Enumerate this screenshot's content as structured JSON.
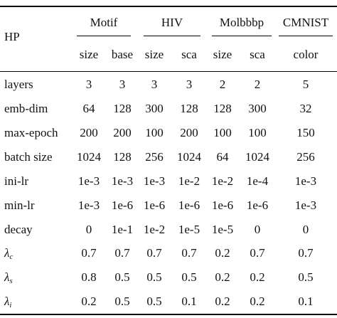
{
  "table": {
    "hp_header": "HP",
    "groups": [
      {
        "name": "Motif",
        "columns": [
          "size",
          "base"
        ]
      },
      {
        "name": "HIV",
        "columns": [
          "size",
          "sca"
        ]
      },
      {
        "name": "Molbbbp",
        "columns": [
          "size",
          "sca"
        ]
      },
      {
        "name": "CMNIST",
        "columns": [
          "color"
        ]
      }
    ],
    "rows": [
      {
        "label": "layers",
        "values": [
          "3",
          "3",
          "3",
          "3",
          "2",
          "2",
          "5"
        ]
      },
      {
        "label": "emb-dim",
        "values": [
          "64",
          "128",
          "300",
          "128",
          "128",
          "300",
          "32"
        ]
      },
      {
        "label": "max-epoch",
        "values": [
          "200",
          "200",
          "100",
          "200",
          "100",
          "100",
          "150"
        ]
      },
      {
        "label": "batch size",
        "values": [
          "1024",
          "128",
          "256",
          "1024",
          "64",
          "1024",
          "256"
        ]
      },
      {
        "label": "ini-lr",
        "values": [
          "1e-3",
          "1e-3",
          "1e-3",
          "1e-2",
          "1e-2",
          "1e-4",
          "1e-3"
        ]
      },
      {
        "label": "min-lr",
        "values": [
          "1e-3",
          "1e-6",
          "1e-6",
          "1e-6",
          "1e-6",
          "1e-6",
          "1e-3"
        ]
      },
      {
        "label": "decay",
        "values": [
          "0",
          "1e-1",
          "1e-2",
          "1e-5",
          "1e-5",
          "0",
          "0"
        ]
      },
      {
        "label_symbol": "λ",
        "label_sub": "c",
        "values": [
          "0.7",
          "0.7",
          "0.7",
          "0.7",
          "0.2",
          "0.7",
          "0.7"
        ]
      },
      {
        "label_symbol": "λ",
        "label_sub": "s",
        "values": [
          "0.8",
          "0.5",
          "0.5",
          "0.5",
          "0.2",
          "0.2",
          "0.5"
        ]
      },
      {
        "label_symbol": "λ",
        "label_sub": "i",
        "values": [
          "0.2",
          "0.5",
          "0.5",
          "0.1",
          "0.2",
          "0.2",
          "0.1"
        ]
      }
    ]
  }
}
